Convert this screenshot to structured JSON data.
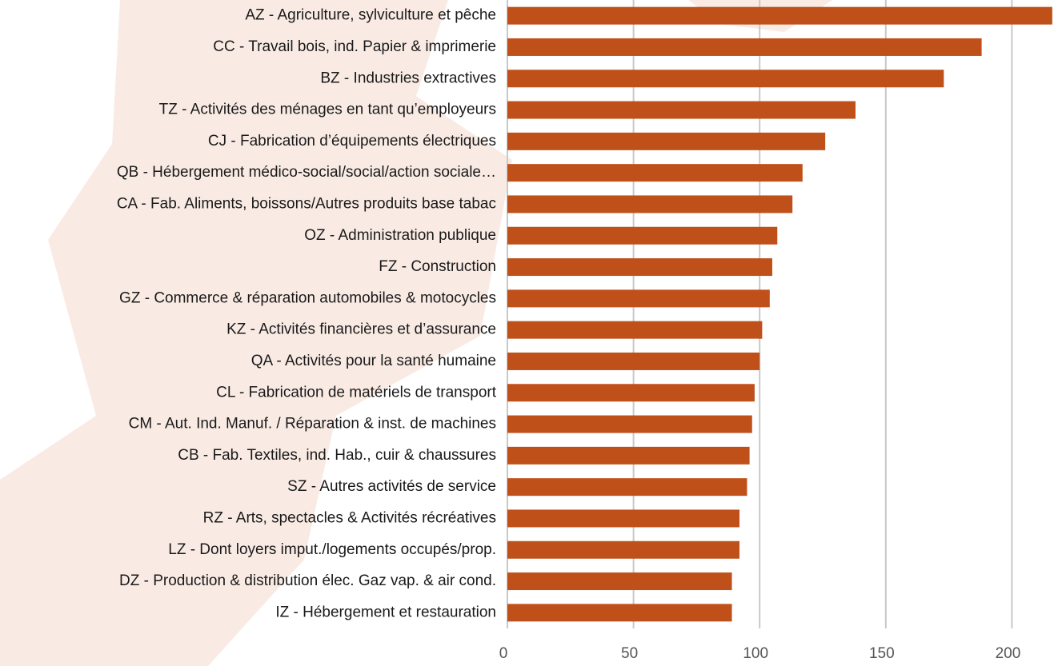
{
  "chart_data": {
    "type": "barh",
    "categories": [
      "AZ - Agriculture, sylviculture et pêche",
      "CC - Travail bois, ind. Papier & imprimerie",
      "BZ - Industries extractives",
      "TZ -  Activités des ménages en tant qu’employeurs",
      "CJ - Fabrication d’équipements électriques",
      "QB - Hébergement médico-social/social/action sociale…",
      "CA - Fab. Aliments, boissons/Autres produits base tabac",
      "OZ - Administration publique",
      "FZ - Construction",
      "GZ - Commerce & réparation automobiles & motocycles",
      "KZ - Activités financières et d’assurance",
      "QA - Activités pour la santé humaine",
      "CL - Fabrication de matériels de transport",
      "CM - Aut. Ind. Manuf. / Réparation & inst. de machines",
      "CB - Fab. Textiles, ind. Hab., cuir & chaussures",
      "SZ - Autres activités de service",
      "RZ - Arts, spectacles & Activités récréatives",
      "LZ - Dont loyers imput./logements occupés/prop.",
      "DZ - Production & distribution élec. Gaz vap. & air cond.",
      "IZ - Hébergement et restauration"
    ],
    "values": [
      216,
      188,
      173,
      138,
      126,
      117,
      113,
      107,
      105,
      104,
      101,
      100,
      98,
      97,
      96,
      95,
      92,
      92,
      89,
      89
    ],
    "color": "#c0501a",
    "xlim": [
      0,
      217
    ],
    "xticks": [
      0,
      50,
      100,
      150,
      200
    ],
    "grid": true
  }
}
